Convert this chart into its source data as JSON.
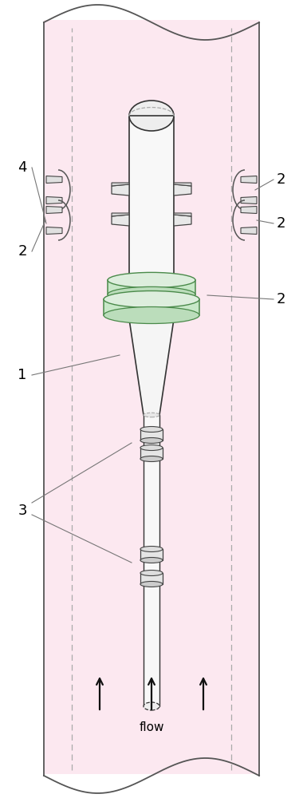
{
  "fig_width": 3.8,
  "fig_height": 10.0,
  "dpi": 100,
  "bg_color": "#ffffff",
  "pipe_fill": "#fce8f0",
  "pipe_edge_color": "#555555",
  "dashed_color": "#aaaaaa",
  "probe_fill": "#f5f5f5",
  "probe_edge": "#333333",
  "ring_fill": "#e8e8e8",
  "ring_edge": "#444444",
  "green_fill": "#c8e8c8",
  "green_edge": "#4a8a4a",
  "label_fontsize": 13,
  "flow_label": "flow",
  "arrow_color": "#111111"
}
